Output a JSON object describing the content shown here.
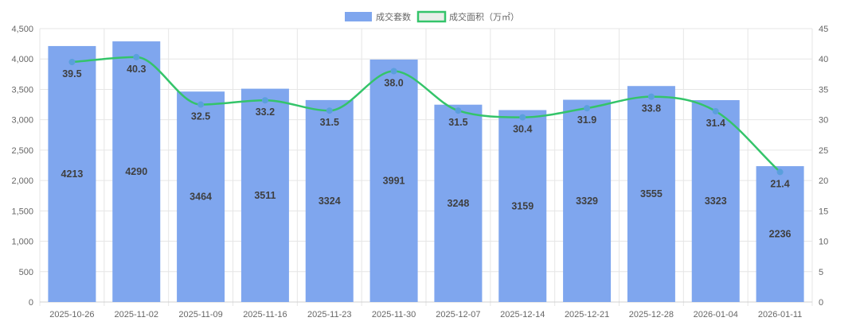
{
  "chart_data": {
    "type": "bar",
    "categories": [
      "2025-10-26",
      "2025-11-02",
      "2025-11-09",
      "2025-11-16",
      "2025-11-23",
      "2025-11-30",
      "2025-12-07",
      "2025-12-14",
      "2025-12-21",
      "2025-12-28",
      "2026-01-04",
      "2026-01-11"
    ],
    "series": [
      {
        "name": "成交套数",
        "type": "bar",
        "axis": "left",
        "color": "#7fa6ee",
        "values": [
          4213,
          4290,
          3464,
          3511,
          3324,
          3991,
          3248,
          3159,
          3329,
          3555,
          3323,
          2236
        ]
      },
      {
        "name": "成交面积（万㎡）",
        "type": "line",
        "axis": "right",
        "color": "#34c46a",
        "point_color": "#5a9fdc",
        "values": [
          39.5,
          40.3,
          32.5,
          33.2,
          31.5,
          38.0,
          31.5,
          30.4,
          31.9,
          33.8,
          31.4,
          21.4
        ],
        "labels": [
          "39.5",
          "40.3",
          "32.5",
          "33.2",
          "31.5",
          "38.0",
          "31.5",
          "30.4",
          "31.9",
          "33.8",
          "31.4",
          "21.4"
        ]
      }
    ],
    "y_left": {
      "min": 0,
      "max": 4500,
      "ticks": [
        0,
        500,
        1000,
        1500,
        2000,
        2500,
        3000,
        3500,
        4000,
        4500
      ],
      "tick_labels": [
        "0",
        "500",
        "1,000",
        "1,500",
        "2,000",
        "2,500",
        "3,000",
        "3,500",
        "4,000",
        "4,500"
      ]
    },
    "y_right": {
      "min": 0,
      "max": 45,
      "ticks": [
        0,
        5,
        10,
        15,
        20,
        25,
        30,
        35,
        40,
        45
      ],
      "tick_labels": [
        "0",
        "5",
        "10",
        "15",
        "20",
        "25",
        "30",
        "35",
        "40",
        "45"
      ]
    },
    "grid": true,
    "legend": "top-center"
  }
}
